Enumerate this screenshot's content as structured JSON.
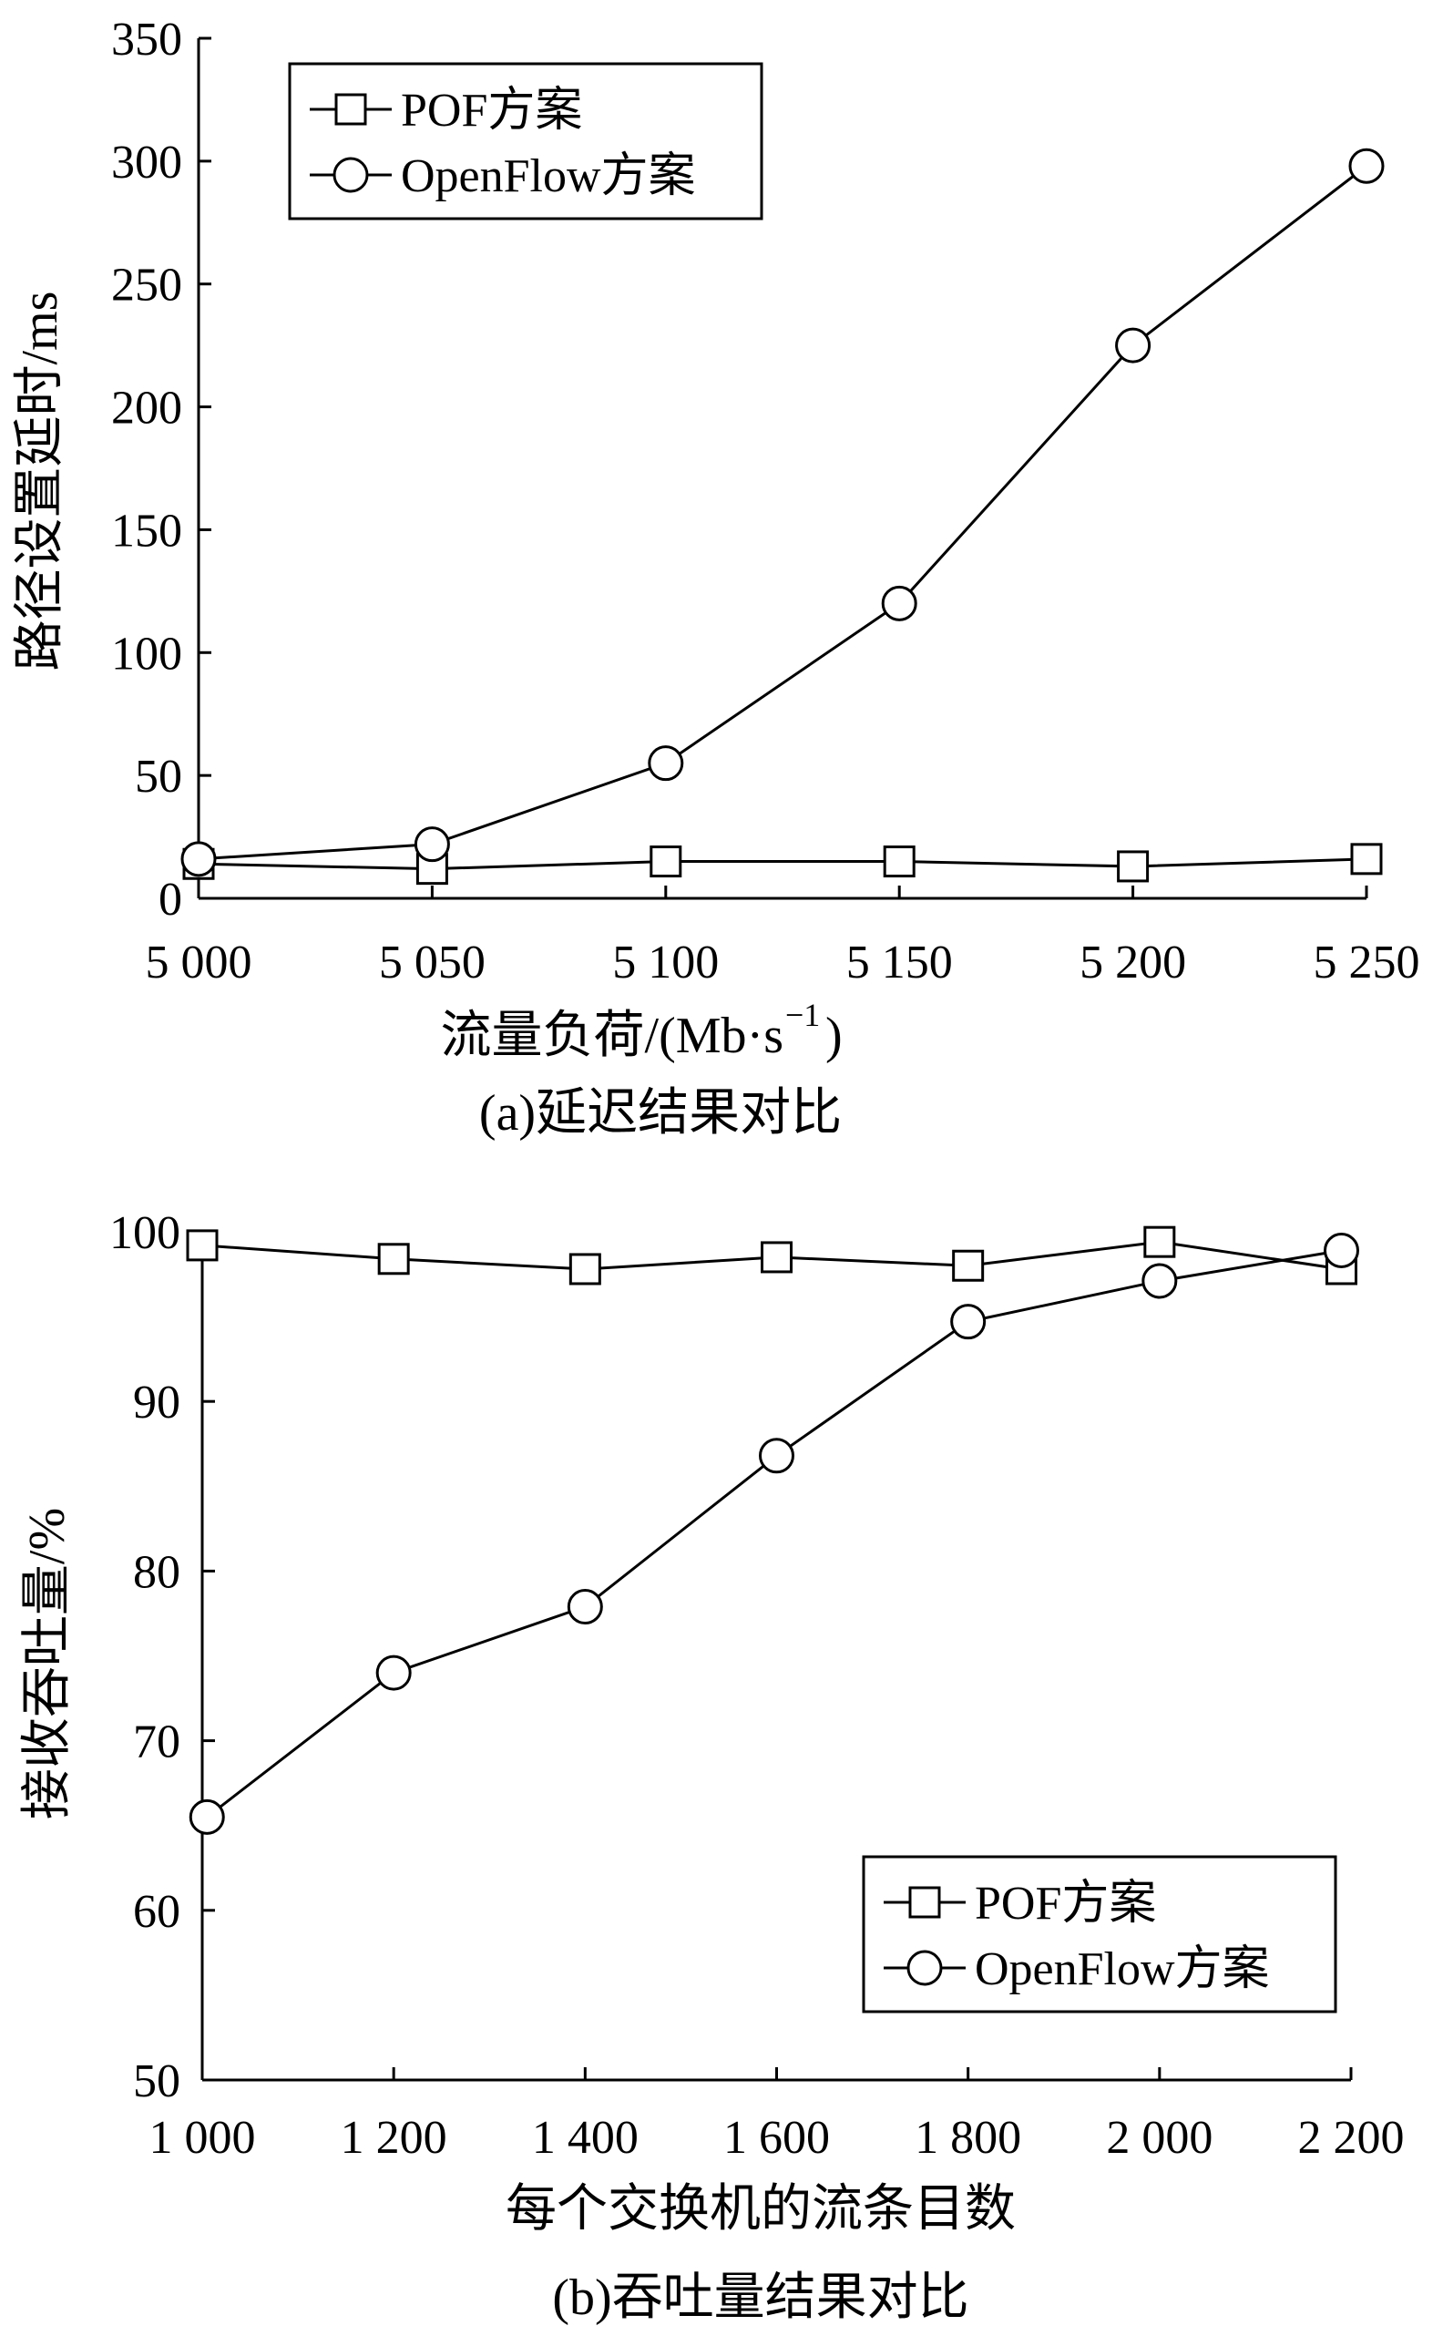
{
  "chart_data": [
    {
      "type": "line",
      "caption": "(a)延迟结果对比",
      "xlabel": "流量负荷/(Mb·s",
      "xlabel_sup": "−1",
      "xlabel_tail": ")",
      "ylabel": "路径设置延时/ms",
      "xlim": [
        5000,
        5250
      ],
      "ylim": [
        0,
        350
      ],
      "x_ticks": [
        5000,
        5050,
        5100,
        5150,
        5200,
        5250
      ],
      "x_tick_labels": [
        "5 000",
        "5 050",
        "5 100",
        "5 150",
        "5 200",
        "5 250"
      ],
      "y_ticks": [
        0,
        50,
        100,
        150,
        200,
        250,
        300,
        350
      ],
      "y_tick_labels": [
        "0",
        "50",
        "100",
        "150",
        "200",
        "250",
        "300",
        "350"
      ],
      "legend_position": "top-left",
      "series": [
        {
          "name": "POF方案",
          "marker": "square",
          "x": [
            5000,
            5050,
            5100,
            5150,
            5200,
            5250
          ],
          "values": [
            14,
            12,
            15,
            15,
            13,
            16
          ]
        },
        {
          "name": "OpenFlow方案",
          "marker": "circle",
          "x": [
            5000,
            5050,
            5100,
            5150,
            5200,
            5250
          ],
          "values": [
            16,
            22,
            55,
            120,
            225,
            298
          ]
        }
      ]
    },
    {
      "type": "line",
      "caption": "(b)吞吐量结果对比",
      "xlabel": "每个交换机的流条目数",
      "ylabel": "接收吞吐量/%",
      "xlim": [
        1000,
        2200
      ],
      "ylim": [
        50,
        100
      ],
      "x_ticks": [
        1000,
        1200,
        1400,
        1600,
        1800,
        2000,
        2200
      ],
      "x_tick_labels": [
        "1 000",
        "1 200",
        "1 400",
        "1 600",
        "1 800",
        "2 000",
        "2 200"
      ],
      "y_ticks": [
        50,
        60,
        70,
        80,
        90,
        100
      ],
      "y_tick_labels": [
        "50",
        "60",
        "70",
        "80",
        "90",
        "100"
      ],
      "legend_position": "bottom-right",
      "series": [
        {
          "name": "POF方案",
          "marker": "square",
          "x": [
            1000,
            1200,
            1400,
            1600,
            1800,
            2000,
            2190
          ],
          "values": [
            99.2,
            98.4,
            97.8,
            98.5,
            98.0,
            99.4,
            97.8
          ]
        },
        {
          "name": "OpenFlow方案",
          "marker": "circle",
          "x": [
            1005,
            1200,
            1400,
            1600,
            1800,
            2000,
            2190
          ],
          "values": [
            65.5,
            74.0,
            77.9,
            86.8,
            94.7,
            97.1,
            98.9
          ]
        }
      ]
    }
  ]
}
